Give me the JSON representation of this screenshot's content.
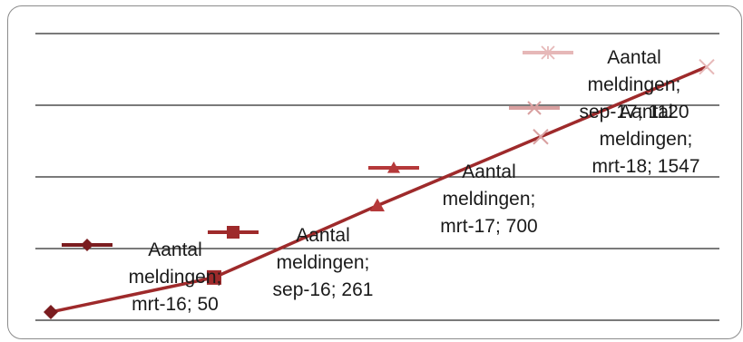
{
  "chart_data": {
    "type": "line",
    "grid": true,
    "ylim": [
      0,
      1750
    ],
    "categories": [
      "mrt-16",
      "sep-16",
      "mrt-17",
      "sep-17",
      "mrt-18"
    ],
    "series": [
      {
        "name": "Aantal meldingen",
        "values": [
          50,
          261,
          700,
          1120,
          1547
        ]
      }
    ],
    "data_labels": [
      [
        "Aantal",
        "meldingen;",
        "mrt-16; 50"
      ],
      [
        "Aantal",
        "meldingen;",
        "sep-16; 261"
      ],
      [
        "Aantal",
        "meldingen;",
        "mrt-17; 700"
      ],
      [
        "Aantal",
        "meldingen;",
        "sep-17; 1120"
      ],
      [
        "Aantal",
        "meldingen;",
        "mrt-18; 1547"
      ]
    ],
    "legend": [
      {
        "label": "",
        "marker": "diamond"
      },
      {
        "label": "",
        "marker": "square"
      },
      {
        "label": "",
        "marker": "triangle"
      },
      {
        "label": "",
        "marker": "x"
      },
      {
        "label": "",
        "marker": "star"
      }
    ],
    "colors": {
      "line": "#9e2a2b",
      "markers": [
        "#7a1c1f",
        "#9e2a2b",
        "#b5393a",
        "#d9a0a0",
        "#e6b8b8"
      ]
    }
  }
}
